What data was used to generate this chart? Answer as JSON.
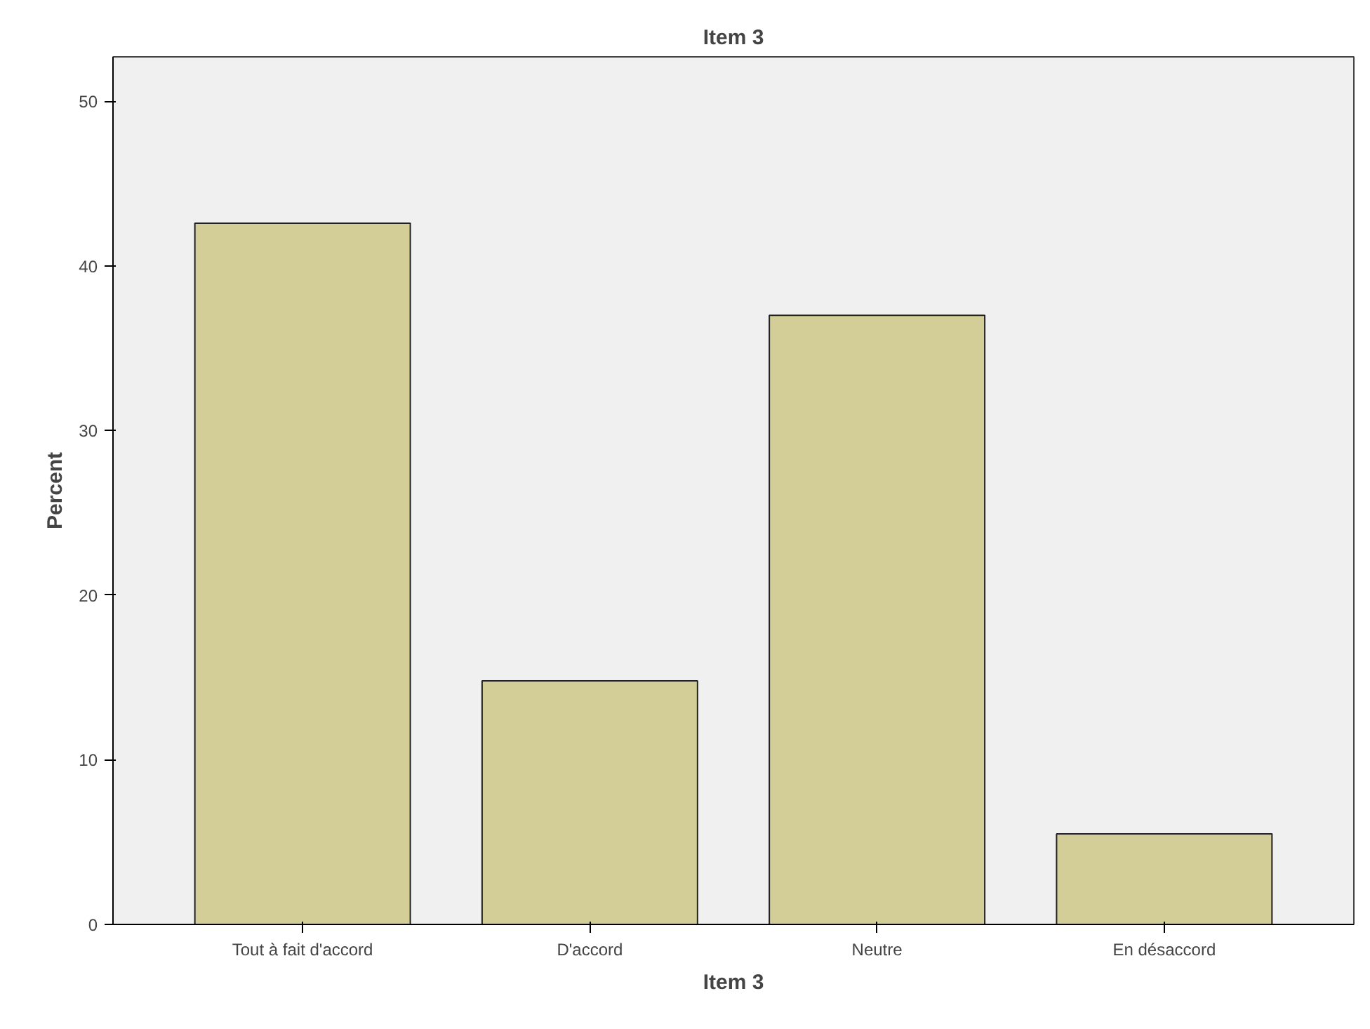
{
  "chart_data": {
    "type": "bar",
    "title": "Item 3",
    "xlabel": "Item 3",
    "ylabel": "Percent",
    "categories": [
      "Tout à fait d'accord",
      "D'accord",
      "Neutre",
      "En désaccord"
    ],
    "values": [
      42.6,
      14.8,
      37.0,
      5.5
    ],
    "color": "#d3ce97",
    "ylim": [
      0,
      52.7
    ],
    "yticks": [
      0,
      10,
      20,
      30,
      40,
      50
    ],
    "grid": false
  }
}
